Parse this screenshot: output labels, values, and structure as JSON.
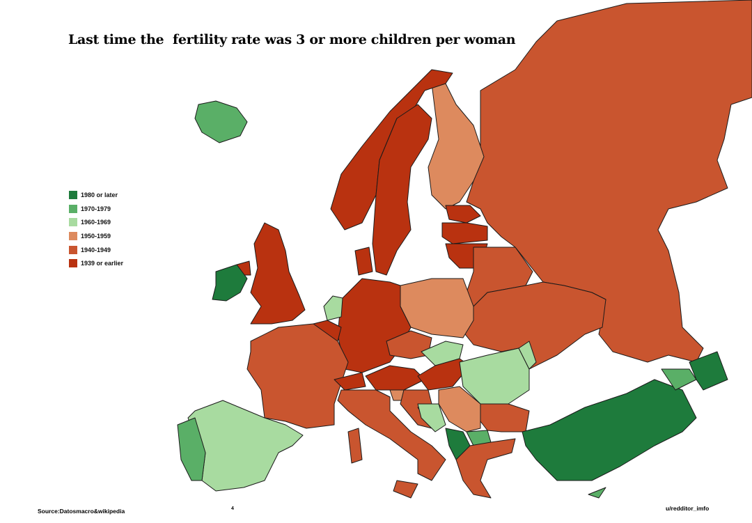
{
  "title": "Last time the  fertility rate was 3 or more children per woman",
  "legend": [
    {
      "label": "1980 or later",
      "key": "c1980",
      "color": "#1e7b3c"
    },
    {
      "label": "1970-1979",
      "key": "c1970",
      "color": "#5aaf67"
    },
    {
      "label": "1960-1969",
      "key": "c1960",
      "color": "#a8dba0"
    },
    {
      "label": "1950-1959",
      "key": "c1950",
      "color": "#dd8a5e"
    },
    {
      "label": "1940-1949",
      "key": "c1940",
      "color": "#c9552f"
    },
    {
      "label": "1939 or earlier",
      "key": "c1939",
      "color": "#b93210"
    }
  ],
  "countries": {
    "russia": "c1940",
    "finland": "c1950",
    "norway": "c1939",
    "sweden": "c1939",
    "denmark": "c1939",
    "estonia": "c1939",
    "latvia": "c1939",
    "lithuania": "c1939",
    "belarus": "c1940",
    "ukraine": "c1940",
    "poland": "c1950",
    "germany": "c1939",
    "netherlands": "c1960",
    "belgium": "c1939",
    "france": "c1940",
    "switzerland": "c1939",
    "austria": "c1939",
    "czechia": "c1940",
    "slovakia": "c1960",
    "hungary": "c1939",
    "romania": "c1960",
    "moldova": "c1960",
    "italy": "c1940",
    "sardinia": "c1940",
    "sicily": "c1940",
    "slovenia": "c1950",
    "croatia": "c1940",
    "bosnia": "c1960",
    "serbia": "c1950",
    "albania": "c1980",
    "north-macedonia": "c1970",
    "bulgaria": "c1940",
    "greece": "c1940",
    "turkey": "c1980",
    "georgia": "c1970",
    "azerbaijan": "c1980",
    "cyprus": "c1970",
    "united-kingdom": "c1939",
    "northern-ireland": "c1939",
    "ireland": "c1980",
    "iceland": "c1970",
    "spain": "c1960",
    "portugal": "c1970"
  },
  "source": "Source:Datosmacro&wikipedia",
  "credit": "u/redditor_imfo",
  "page_mark": "4"
}
